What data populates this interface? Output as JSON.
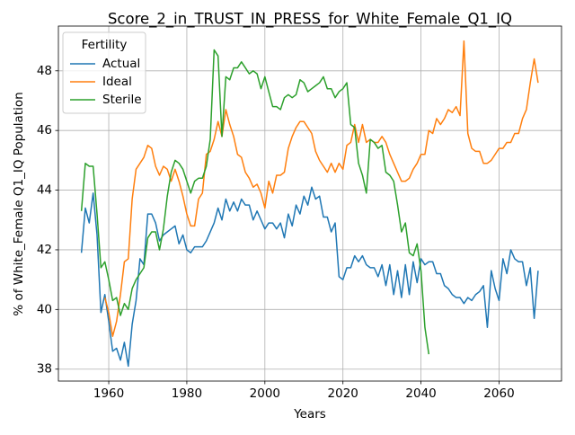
{
  "chart_data": {
    "type": "line",
    "title": "Score_2_in_TRUST_IN_PRESS_for_White_Female_Q1_IQ",
    "xlabel": "Years",
    "ylabel": "% of White_Female Q1_IQ Population",
    "legend_title": "Fertility",
    "legend": "upper left",
    "grid": true,
    "x": [
      1953,
      1954,
      1955,
      1956,
      1957,
      1958,
      1959,
      1960,
      1961,
      1962,
      1963,
      1964,
      1965,
      1966,
      1967,
      1968,
      1969,
      1970,
      1971,
      1972,
      1973,
      1974,
      1975,
      1976,
      1977,
      1978,
      1979,
      1980,
      1981,
      1982,
      1983,
      1984,
      1985,
      1986,
      1987,
      1988,
      1989,
      1990,
      1991,
      1992,
      1993,
      1994,
      1995,
      1996,
      1997,
      1998,
      1999,
      2000,
      2001,
      2002,
      2003,
      2004,
      2005,
      2006,
      2007,
      2008,
      2009,
      2010,
      2011,
      2012,
      2013,
      2014,
      2015,
      2016,
      2017,
      2018,
      2019,
      2020,
      2021,
      2022,
      2023,
      2024,
      2025,
      2026,
      2027,
      2028,
      2029,
      2030,
      2031,
      2032,
      2033,
      2034,
      2035,
      2036,
      2037,
      2038,
      2039,
      2040,
      2041,
      2042,
      2043,
      2044,
      2045,
      2046,
      2047,
      2048,
      2049,
      2050,
      2051,
      2052,
      2053,
      2054,
      2055,
      2056,
      2057,
      2058,
      2059,
      2060,
      2061,
      2062,
      2063,
      2064,
      2065,
      2066,
      2067,
      2068,
      2069,
      2070
    ],
    "xlim": [
      1947.1,
      2076
    ],
    "xticks": [
      1960,
      1980,
      2000,
      2020,
      2040,
      2060
    ],
    "ylim": [
      37.6,
      49.5
    ],
    "yticks": [
      38,
      40,
      42,
      44,
      46,
      48
    ],
    "series": [
      {
        "name": "Actual",
        "color": "#1f77b4",
        "values": [
          41.9,
          43.4,
          42.9,
          43.9,
          42.5,
          39.9,
          40.5,
          39.6,
          38.6,
          38.7,
          38.3,
          38.9,
          38.1,
          39.5,
          40.3,
          41.7,
          41.5,
          43.2,
          43.2,
          42.9,
          42.3,
          42.5,
          42.6,
          42.7,
          42.8,
          42.2,
          42.5,
          42.0,
          41.9,
          42.1,
          42.1,
          42.1,
          42.3,
          42.6,
          42.9,
          43.4,
          43.0,
          43.7,
          43.3,
          43.6,
          43.3,
          43.7,
          43.5,
          43.5,
          43.0,
          43.3,
          43.0,
          42.7,
          42.9,
          42.9,
          42.7,
          42.9,
          42.4,
          43.2,
          42.8,
          43.5,
          43.2,
          43.8,
          43.5,
          44.1,
          43.7,
          43.8,
          43.1,
          43.1,
          42.6,
          42.9,
          41.1,
          41.0,
          41.4,
          41.4,
          41.8,
          41.6,
          41.8,
          41.5,
          41.4,
          41.4,
          41.1,
          41.5,
          40.8,
          41.5,
          40.5,
          41.3,
          40.4,
          41.5,
          40.5,
          41.6,
          40.9,
          41.7,
          41.5,
          41.6,
          41.6,
          41.2,
          41.2,
          40.8,
          40.7,
          40.5,
          40.4,
          40.4,
          40.2,
          40.4,
          40.3,
          40.5,
          40.6,
          40.8,
          39.4,
          41.3,
          40.7,
          40.3,
          41.7,
          41.2,
          42.0,
          41.7,
          41.6,
          41.6,
          40.8,
          41.4,
          39.7,
          41.3
        ]
      },
      {
        "name": "Ideal",
        "color": "#ff7f0e",
        "values": [
          null,
          null,
          null,
          null,
          null,
          null,
          40.4,
          39.9,
          39.1,
          39.6,
          40.5,
          41.6,
          41.7,
          43.7,
          44.7,
          44.9,
          45.1,
          45.5,
          45.4,
          44.8,
          44.5,
          44.8,
          44.7,
          44.3,
          44.7,
          44.3,
          43.8,
          43.2,
          42.8,
          42.8,
          43.7,
          43.9,
          45.2,
          45.3,
          45.7,
          46.3,
          45.8,
          46.7,
          46.2,
          45.8,
          45.2,
          45.1,
          44.6,
          44.4,
          44.1,
          44.2,
          43.9,
          43.4,
          44.3,
          43.9,
          44.5,
          44.5,
          44.6,
          45.4,
          45.8,
          46.1,
          46.3,
          46.3,
          46.1,
          45.9,
          45.3,
          45.0,
          44.8,
          44.6,
          44.9,
          44.6,
          44.9,
          44.7,
          45.5,
          45.6,
          46.2,
          45.6,
          46.2,
          45.6,
          45.7,
          45.6,
          45.6,
          45.8,
          45.6,
          45.2,
          44.9,
          44.6,
          44.3,
          44.3,
          44.4,
          44.7,
          44.9,
          45.2,
          45.2,
          46.0,
          45.9,
          46.4,
          46.2,
          46.4,
          46.7,
          46.6,
          46.8,
          46.5,
          49.0,
          45.9,
          45.4,
          45.3,
          45.3,
          44.9,
          44.9,
          45.0,
          45.2,
          45.4,
          45.4,
          45.6,
          45.6,
          45.9,
          45.9,
          46.4,
          46.7,
          47.6,
          48.4,
          47.6
        ]
      },
      {
        "name": "Sterile",
        "color": "#2ca02c",
        "values": [
          43.3,
          44.9,
          44.8,
          44.8,
          43.2,
          41.4,
          41.6,
          41.0,
          40.3,
          40.4,
          39.8,
          40.2,
          40.0,
          40.7,
          41.0,
          41.2,
          41.4,
          42.4,
          42.6,
          42.6,
          42.0,
          42.7,
          43.8,
          44.6,
          45.0,
          44.9,
          44.7,
          44.3,
          43.9,
          44.3,
          44.4,
          44.4,
          44.8,
          45.7,
          48.7,
          48.5,
          45.8,
          47.8,
          47.7,
          48.1,
          48.1,
          48.3,
          48.1,
          47.9,
          48.0,
          47.9,
          47.4,
          47.8,
          47.3,
          46.8,
          46.8,
          46.7,
          47.1,
          47.2,
          47.1,
          47.2,
          47.7,
          47.6,
          47.3,
          47.4,
          47.5,
          47.6,
          47.8,
          47.4,
          47.4,
          47.1,
          47.3,
          47.4,
          47.6,
          46.2,
          46.1,
          44.9,
          44.5,
          43.9,
          45.7,
          45.6,
          45.4,
          45.5,
          44.6,
          44.5,
          44.3,
          43.5,
          42.6,
          42.9,
          41.9,
          41.8,
          42.2,
          41.3,
          39.4,
          38.5,
          null,
          null,
          null,
          null,
          null,
          null,
          null,
          null,
          null,
          null,
          null,
          null,
          null,
          null,
          null,
          null,
          null,
          null,
          null,
          null,
          null,
          null,
          null,
          null,
          null,
          null,
          null,
          null
        ]
      }
    ]
  }
}
